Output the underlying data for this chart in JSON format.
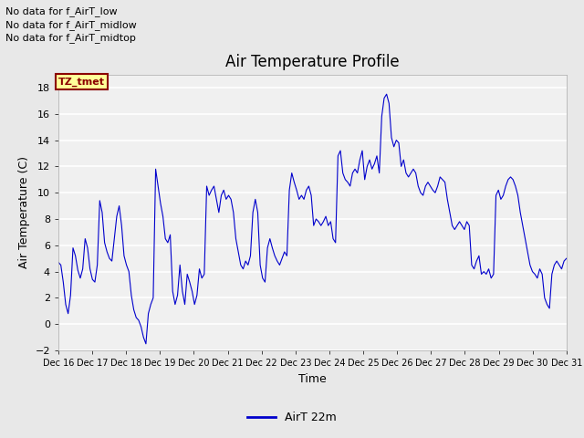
{
  "title": "Air Temperature Profile",
  "xlabel": "Time",
  "ylabel": "Air Temperature (C)",
  "line_color": "#0000CC",
  "background_color": "#E8E8E8",
  "plot_bg_color": "#F0F0F0",
  "ylim": [
    -2,
    19
  ],
  "yticks": [
    -2,
    0,
    2,
    4,
    6,
    8,
    10,
    12,
    14,
    16,
    18
  ],
  "legend_label": "AirT 22m",
  "annotations": [
    "No data for f_AirT_low",
    "No data for f_AirT_midlow",
    "No data for f_AirT_midtop"
  ],
  "tz_label": "TZ_tmet",
  "x_tick_labels": [
    "Dec 16",
    "Dec 17",
    "Dec 18",
    "Dec 19",
    "Dec 20",
    "Dec 21",
    "Dec 22",
    "Dec 23",
    "Dec 24",
    "Dec 25",
    "Dec 26",
    "Dec 27",
    "Dec 28",
    "Dec 29",
    "Dec 30",
    "Dec 31"
  ],
  "temp_data": [
    4.7,
    4.5,
    3.2,
    1.5,
    0.8,
    2.2,
    5.8,
    5.2,
    4.1,
    3.5,
    4.2,
    6.5,
    5.8,
    4.2,
    3.4,
    3.2,
    4.5,
    9.4,
    8.5,
    6.2,
    5.5,
    5.0,
    4.8,
    6.5,
    8.2,
    9.0,
    7.5,
    5.2,
    4.5,
    4.0,
    2.2,
    1.1,
    0.5,
    0.3,
    -0.2,
    -1.0,
    -1.5,
    0.8,
    1.5,
    2.0,
    11.8,
    10.5,
    9.2,
    8.2,
    6.5,
    6.2,
    6.8,
    2.5,
    1.5,
    2.2,
    4.5,
    2.5,
    1.5,
    3.8,
    3.2,
    2.5,
    1.5,
    2.2,
    4.2,
    3.5,
    3.8,
    10.5,
    9.8,
    10.2,
    10.5,
    9.5,
    8.5,
    9.8,
    10.2,
    9.5,
    9.8,
    9.5,
    8.5,
    6.5,
    5.5,
    4.5,
    4.2,
    4.8,
    4.5,
    5.2,
    8.5,
    9.5,
    8.5,
    4.5,
    3.5,
    3.2,
    5.8,
    6.5,
    5.8,
    5.2,
    4.8,
    4.5,
    5.0,
    5.5,
    5.2,
    10.2,
    11.5,
    10.8,
    10.2,
    9.5,
    9.8,
    9.5,
    10.2,
    10.5,
    9.8,
    7.5,
    8.0,
    7.8,
    7.5,
    7.8,
    8.2,
    7.5,
    7.8,
    6.5,
    6.2,
    12.8,
    13.2,
    11.5,
    11.0,
    10.8,
    10.5,
    11.5,
    11.8,
    11.5,
    12.5,
    13.2,
    11.0,
    12.0,
    12.5,
    11.8,
    12.2,
    12.8,
    11.5,
    15.8,
    17.2,
    17.5,
    16.8,
    14.2,
    13.5,
    14.0,
    13.8,
    12.0,
    12.5,
    11.5,
    11.2,
    11.5,
    11.8,
    11.5,
    10.5,
    10.0,
    9.8,
    10.5,
    10.8,
    10.5,
    10.2,
    10.0,
    10.5,
    11.2,
    11.0,
    10.8,
    9.5,
    8.5,
    7.5,
    7.2,
    7.5,
    7.8,
    7.5,
    7.2,
    7.8,
    7.5,
    4.5,
    4.2,
    4.8,
    5.2,
    3.8,
    4.0,
    3.8,
    4.2,
    3.5,
    3.8,
    9.8,
    10.2,
    9.5,
    9.8,
    10.5,
    11.0,
    11.2,
    11.0,
    10.5,
    9.8,
    8.5,
    7.5,
    6.5,
    5.5,
    4.5,
    4.0,
    3.8,
    3.5,
    4.2,
    3.8,
    2.0,
    1.5,
    1.2,
    3.8,
    4.5,
    4.8,
    4.5,
    4.2,
    4.8,
    5.0
  ]
}
